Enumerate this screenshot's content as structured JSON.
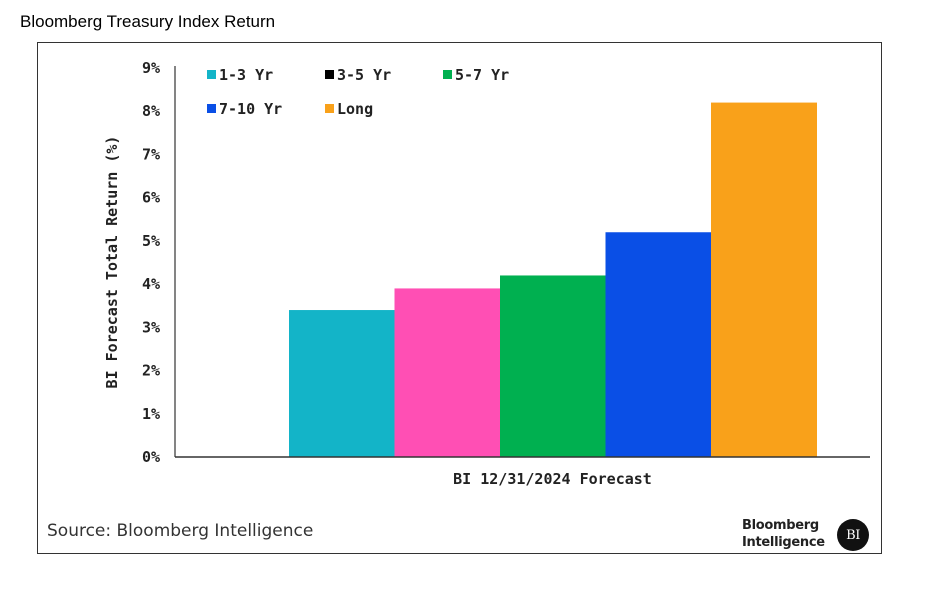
{
  "page_title": "Bloomberg Treasury Index Return",
  "source": "Source: Bloomberg Intelligence",
  "brand": {
    "line1": "Bloomberg",
    "line2": "Intelligence",
    "logo": "BI"
  },
  "chart_data": {
    "type": "bar",
    "title": "",
    "xlabel": "BI 12/31/2024 Forecast",
    "ylabel": "BI Forecast Total Return (%)",
    "ylim": [
      0,
      9
    ],
    "yticks": [
      "0%",
      "1%",
      "2%",
      "3%",
      "4%",
      "5%",
      "6%",
      "7%",
      "8%",
      "9%"
    ],
    "categories": [
      "BI 12/31/2024 Forecast"
    ],
    "grid": false,
    "legend_position": "top-left",
    "series": [
      {
        "name": "1-3 Yr",
        "values": [
          3.4
        ],
        "color": "#13b4c8"
      },
      {
        "name": "3-5 Yr",
        "values": [
          3.9
        ],
        "color": "#ff4fb4",
        "legend_marker_color": "#000000"
      },
      {
        "name": "5-7 Yr",
        "values": [
          4.2
        ],
        "color": "#00b050"
      },
      {
        "name": "7-10 Yr",
        "values": [
          5.2
        ],
        "color": "#0a4fe6"
      },
      {
        "name": "Long",
        "values": [
          8.2
        ],
        "color": "#f9a11a"
      }
    ]
  }
}
